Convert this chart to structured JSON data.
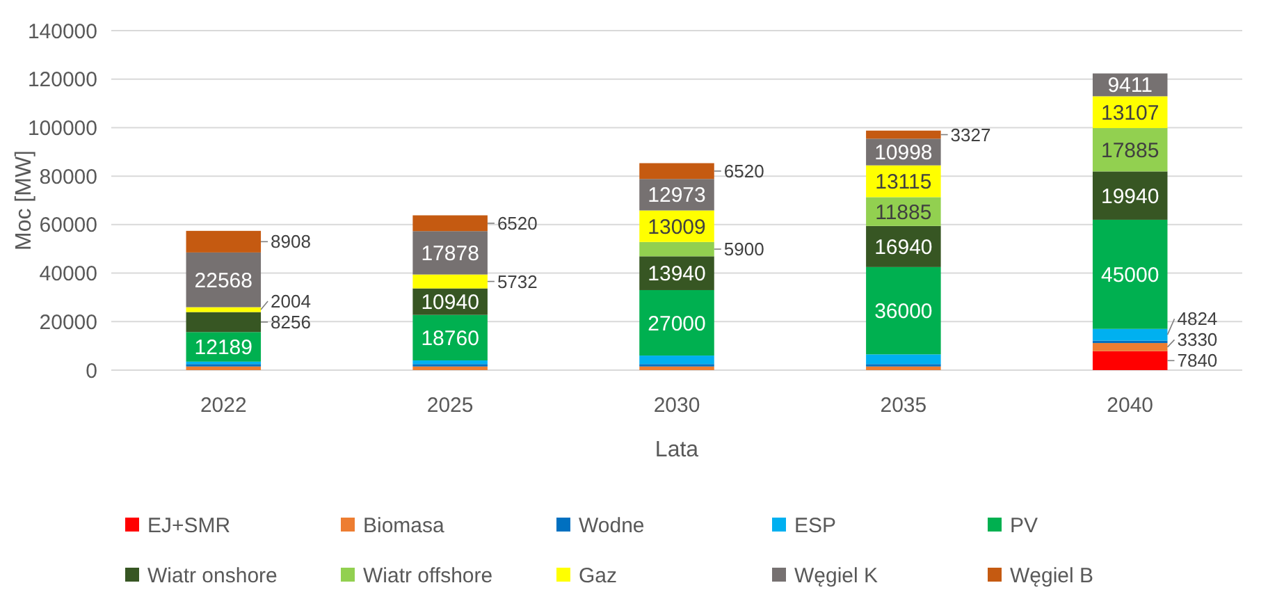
{
  "chart_data": {
    "type": "bar",
    "stacked": true,
    "xlabel": "Lata",
    "ylabel": "Moc [MW]",
    "categories": [
      "2022",
      "2025",
      "2030",
      "2035",
      "2040"
    ],
    "ylim": [
      0,
      140000
    ],
    "yticks": [
      0,
      20000,
      40000,
      60000,
      80000,
      100000,
      120000,
      140000
    ],
    "grid": "y",
    "legend": "bottom",
    "series": [
      {
        "name": "EJ+SMR",
        "color": "#ff0000",
        "values": [
          0,
          0,
          0,
          0,
          7840
        ],
        "value_labels": [
          null,
          null,
          null,
          null,
          "7840"
        ]
      },
      {
        "name": "Biomasa",
        "color": "#ed7d31",
        "values": [
          1500,
          1500,
          1500,
          1500,
          3330
        ],
        "value_labels": [
          null,
          null,
          null,
          null,
          "3330"
        ]
      },
      {
        "name": "Wodne",
        "color": "#0070c0",
        "values": [
          1000,
          1000,
          1000,
          1000,
          1000
        ],
        "value_labels": [
          null,
          null,
          null,
          null,
          null
        ]
      },
      {
        "name": "ESP",
        "color": "#00b0f0",
        "values": [
          1000,
          1500,
          3500,
          4000,
          4824
        ],
        "value_labels": [
          null,
          null,
          null,
          null,
          "4824"
        ]
      },
      {
        "name": "PV",
        "color": "#00b050",
        "values": [
          12189,
          18760,
          27000,
          36000,
          45000
        ],
        "value_labels": [
          "12189",
          "18760",
          "27000",
          "36000",
          "45000"
        ]
      },
      {
        "name": "Wiatr onshore",
        "color": "#375623",
        "values": [
          8256,
          10940,
          13940,
          16940,
          19940
        ],
        "value_labels": [
          "8256",
          "10940",
          "13940",
          "16940",
          "19940"
        ]
      },
      {
        "name": "Wiatr offshore",
        "color": "#92d050",
        "values": [
          0,
          0,
          5900,
          11885,
          17885
        ],
        "value_labels": [
          null,
          null,
          "5900",
          "11885",
          "17885"
        ]
      },
      {
        "name": "Gaz",
        "color": "#ffff00",
        "values": [
          2004,
          5732,
          13009,
          13115,
          13107
        ],
        "value_labels": [
          "2004",
          "5732",
          "13009",
          "13115",
          "13107"
        ]
      },
      {
        "name": "Węgiel K",
        "color": "#767171",
        "values": [
          22568,
          17878,
          12973,
          10998,
          9411
        ],
        "value_labels": [
          "22568",
          "17878",
          "12973",
          "10998",
          "9411"
        ]
      },
      {
        "name": "Węgiel B",
        "color": "#c55a11",
        "values": [
          8908,
          6520,
          6520,
          3327,
          0
        ],
        "value_labels": [
          "8908",
          "6520",
          "6520",
          "3327",
          null
        ]
      }
    ]
  }
}
